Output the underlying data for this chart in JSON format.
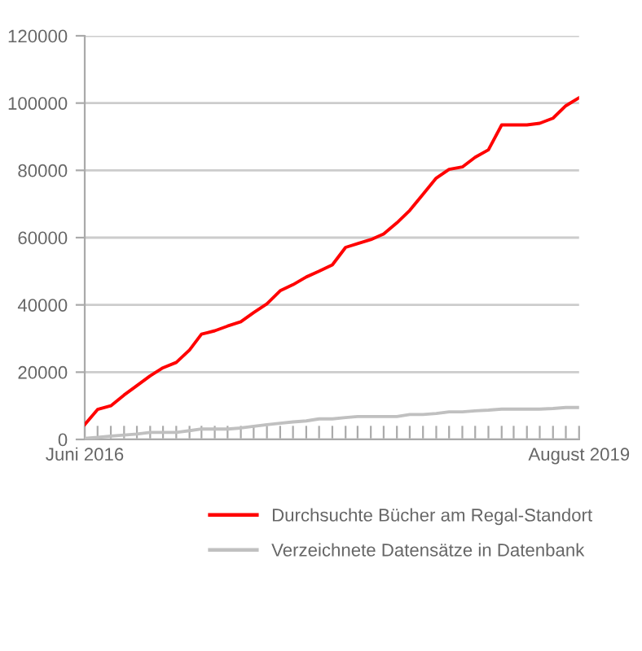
{
  "chart_data": {
    "type": "line",
    "x": [
      "2016-06",
      "2016-07",
      "2016-08",
      "2016-09",
      "2016-10",
      "2016-11",
      "2016-12",
      "2017-01",
      "2017-02",
      "2017-03",
      "2017-04",
      "2017-05",
      "2017-06",
      "2017-07",
      "2017-08",
      "2017-09",
      "2017-10",
      "2017-11",
      "2017-12",
      "2018-01",
      "2018-02",
      "2018-03",
      "2018-04",
      "2018-05",
      "2018-06",
      "2018-07",
      "2018-08",
      "2018-09",
      "2018-10",
      "2018-11",
      "2018-12",
      "2019-01",
      "2019-02",
      "2019-03",
      "2019-04",
      "2019-05",
      "2019-06",
      "2019-07",
      "2019-08"
    ],
    "series": [
      {
        "name": "Durchsuchte Bücher am Regal-Standort",
        "color": "#ff0000",
        "values": [
          4400,
          8900,
          10000,
          13200,
          16000,
          18900,
          21300,
          22900,
          26600,
          31300,
          32300,
          33700,
          35000,
          37700,
          40300,
          44200,
          46000,
          48300,
          50000,
          51900,
          57100,
          58200,
          59400,
          61100,
          64400,
          68100,
          72900,
          77700,
          80300,
          81000,
          83900,
          86100,
          93500,
          93500,
          93500,
          94000,
          95500,
          99200,
          101600
        ]
      },
      {
        "name": "Verzeichnete Datensätze in Datenbank",
        "color": "#c0c0c0",
        "values": [
          300,
          600,
          1000,
          1300,
          1600,
          2100,
          2100,
          2100,
          2600,
          3100,
          3100,
          3100,
          3400,
          3900,
          4400,
          4800,
          5200,
          5500,
          6100,
          6100,
          6500,
          6800,
          6800,
          6800,
          6800,
          7400,
          7400,
          7700,
          8200,
          8200,
          8500,
          8700,
          9000,
          9000,
          9000,
          9000,
          9200,
          9500,
          9500
        ]
      }
    ],
    "xlim": [
      "2016-06",
      "2019-08"
    ],
    "xticks": [
      {
        "value": "2016-06",
        "label": "Juni 2016"
      },
      {
        "value": "2016-07",
        "label": null
      },
      {
        "value": "2016-08",
        "label": null
      },
      {
        "value": "2016-09",
        "label": null
      },
      {
        "value": "2016-10",
        "label": null
      },
      {
        "value": "2016-11",
        "label": null
      },
      {
        "value": "2016-12",
        "label": null
      },
      {
        "value": "2017-01",
        "label": null
      },
      {
        "value": "2017-02",
        "label": null
      },
      {
        "value": "2017-03",
        "label": null
      },
      {
        "value": "2017-04",
        "label": null
      },
      {
        "value": "2017-05",
        "label": null
      },
      {
        "value": "2017-06",
        "label": null
      },
      {
        "value": "2017-07",
        "label": null
      },
      {
        "value": "2017-08",
        "label": null
      },
      {
        "value": "2017-09",
        "label": null
      },
      {
        "value": "2017-10",
        "label": null
      },
      {
        "value": "2017-11",
        "label": null
      },
      {
        "value": "2017-12",
        "label": null
      },
      {
        "value": "2018-01",
        "label": null
      },
      {
        "value": "2018-02",
        "label": null
      },
      {
        "value": "2018-03",
        "label": null
      },
      {
        "value": "2018-04",
        "label": null
      },
      {
        "value": "2018-05",
        "label": null
      },
      {
        "value": "2018-06",
        "label": null
      },
      {
        "value": "2018-07",
        "label": null
      },
      {
        "value": "2018-08",
        "label": null
      },
      {
        "value": "2018-09",
        "label": null
      },
      {
        "value": "2018-10",
        "label": null
      },
      {
        "value": "2018-11",
        "label": null
      },
      {
        "value": "2018-12",
        "label": null
      },
      {
        "value": "2019-01",
        "label": null
      },
      {
        "value": "2019-02",
        "label": null
      },
      {
        "value": "2019-03",
        "label": null
      },
      {
        "value": "2019-04",
        "label": null
      },
      {
        "value": "2019-05",
        "label": null
      },
      {
        "value": "2019-06",
        "label": null
      },
      {
        "value": "2019-07",
        "label": null
      },
      {
        "value": "2019-08",
        "label": "August 2019"
      }
    ],
    "ylim": [
      0,
      120000
    ],
    "yticks": [
      0,
      20000,
      40000,
      60000,
      80000,
      100000,
      120000
    ],
    "grid": "y",
    "legend": "bottom",
    "marker": "none",
    "line_style": "solid"
  }
}
